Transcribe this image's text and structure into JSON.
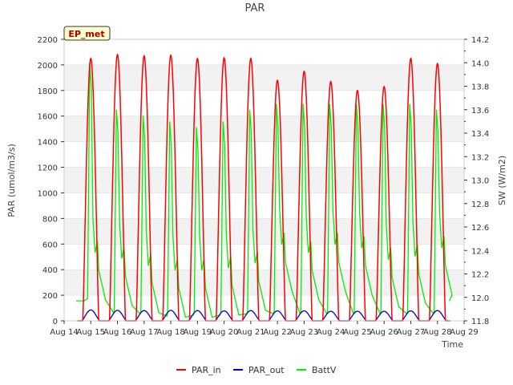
{
  "chart_data": {
    "type": "line",
    "title": "PAR",
    "xlabel": "Time",
    "ylabel": "PAR (umol/m3/s)",
    "ylabel_right": "SW (W/m2)",
    "ylim": [
      0,
      2200
    ],
    "ylim_right": [
      11.8,
      14.2
    ],
    "xlim": [
      14,
      29
    ],
    "x_ticks": [
      14,
      15,
      16,
      17,
      18,
      19,
      20,
      21,
      22,
      23,
      24,
      25,
      26,
      27,
      28,
      29
    ],
    "x_tick_labels": [
      "Aug 14",
      "Aug 15",
      "Aug 16",
      "Aug 17",
      "Aug 18",
      "Aug 19",
      "Aug 20",
      "Aug 21",
      "Aug 22",
      "Aug 23",
      "Aug 24",
      "Aug 25",
      "Aug 26",
      "Aug 27",
      "Aug 28",
      "Aug 29"
    ],
    "y_ticks": [
      0,
      200,
      400,
      600,
      800,
      1000,
      1200,
      1400,
      1600,
      1800,
      2000,
      2200
    ],
    "y_tick_labels": [
      "0",
      "200",
      "400",
      "600",
      "800",
      "1000",
      "1200",
      "1400",
      "1600",
      "1800",
      "2000",
      "2200"
    ],
    "y_ticks_right": [
      11.8,
      12.0,
      12.2,
      12.4,
      12.6,
      12.8,
      13.0,
      13.2,
      13.4,
      13.6,
      13.8,
      14.0,
      14.2
    ],
    "y_tick_labels_right": [
      "11.8",
      "12.0",
      "12.2",
      "12.4",
      "12.6",
      "12.8",
      "13.0",
      "13.2",
      "13.4",
      "13.6",
      "13.8",
      "14.0",
      "14.2"
    ],
    "annotation": "EP_met",
    "legend_position": "bottom-center",
    "series": [
      {
        "name": "PAR_in",
        "color": "#ff0000",
        "axis": "left",
        "days": [
          15,
          16,
          17,
          18,
          19,
          20,
          21,
          22,
          23,
          24,
          25,
          26,
          27,
          28
        ],
        "peaks": [
          2050,
          2080,
          2070,
          2075,
          2050,
          2055,
          2050,
          1880,
          1950,
          1870,
          1800,
          1830,
          2050,
          2010
        ]
      },
      {
        "name": "PAR_out",
        "color": "#0000cc",
        "axis": "left",
        "days": [
          15,
          16,
          17,
          18,
          19,
          20,
          21,
          22,
          23,
          24,
          25,
          26,
          27,
          28
        ],
        "peaks": [
          85,
          82,
          80,
          82,
          80,
          78,
          80,
          78,
          78,
          75,
          75,
          75,
          78,
          80
        ]
      },
      {
        "name": "BattV",
        "color": "#00ee00",
        "axis": "right",
        "days": [
          15,
          16,
          17,
          18,
          19,
          20,
          21,
          22,
          23,
          24,
          25,
          26,
          27,
          28
        ],
        "start_value": 11.97,
        "peaks": [
          14.0,
          13.6,
          13.55,
          13.5,
          13.45,
          13.5,
          13.6,
          13.65,
          13.65,
          13.65,
          13.65,
          13.65,
          13.65,
          13.6
        ],
        "post_peak_min": [
          12.38,
          12.33,
          12.27,
          12.23,
          12.23,
          12.25,
          12.29,
          12.45,
          12.38,
          12.45,
          12.42,
          12.32,
          12.35,
          12.42
        ],
        "pre_peak_min": [
          11.97,
          11.87,
          11.86,
          11.84,
          11.85,
          11.85,
          11.86,
          11.86,
          11.86,
          11.86,
          11.86,
          11.86,
          11.86,
          11.86
        ],
        "end_value": 11.97
      }
    ]
  }
}
